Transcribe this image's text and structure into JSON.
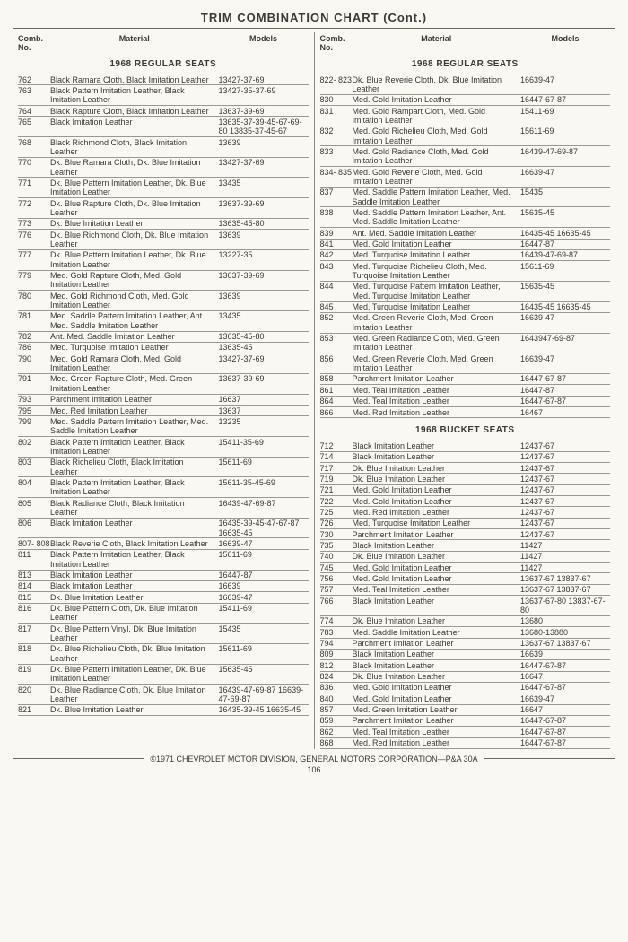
{
  "title": "TRIM COMBINATION CHART (Cont.)",
  "headers": {
    "comb": "Comb.\nNo.",
    "material": "Material",
    "models": "Models"
  },
  "sectionTitles": {
    "regular": "1968 REGULAR SEATS",
    "bucket": "1968 BUCKET SEATS"
  },
  "footer": "©1971 CHEVROLET MOTOR DIVISION, GENERAL MOTORS CORPORATION—P&A 30A",
  "pageNum": "106",
  "left": {
    "regular": [
      {
        "n": "762",
        "m": "Black Ramara Cloth, Black Imitation Leather",
        "md": "13427-37-69"
      },
      {
        "n": "763",
        "m": "Black Pattern Imitation Leather, Black Imitation Leather",
        "md": "13427-35-37-69"
      },
      {
        "n": "764",
        "m": "Black Rapture Cloth, Black Imitation Leather",
        "md": "13637-39-69"
      },
      {
        "n": "765",
        "m": "Black Imitation Leather",
        "md": "13635-37-39-45-67-69-80 13835-37-45-67"
      },
      {
        "n": "768",
        "m": "Black Richmond Cloth, Black Imitation Leather",
        "md": "13639"
      },
      {
        "n": "770",
        "m": "Dk. Blue Ramara Cloth, Dk. Blue Imitation Leather",
        "md": "13427-37-69"
      },
      {
        "n": "771",
        "m": "Dk. Blue Pattern Imitation Leather, Dk. Blue Imitation Leather",
        "md": "13435"
      },
      {
        "n": "772",
        "m": "Dk. Blue Rapture Cloth, Dk. Blue Imitation Leather",
        "md": "13637-39-69"
      },
      {
        "n": "773",
        "m": "Dk. Blue Imitation Leather",
        "md": "13635-45-80"
      },
      {
        "n": "776",
        "m": "Dk. Blue Richmond Cloth, Dk. Blue Imitation Leather",
        "md": "13639"
      },
      {
        "n": "777",
        "m": "Dk. Blue Pattern Imitation Leather, Dk. Blue Imitation Leather",
        "md": "13227-35"
      },
      {
        "n": "779",
        "m": "Med. Gold Rapture Cloth, Med. Gold Imitation Leather",
        "md": "13637-39-69"
      },
      {
        "n": "780",
        "m": "Med. Gold Richmond Cloth, Med. Gold Imitation Leather",
        "md": "13639"
      },
      {
        "n": "781",
        "m": "Med. Saddle Pattern Imitation Leather, Ant. Med. Saddle Imitation Leather",
        "md": "13435"
      },
      {
        "n": "782",
        "m": "Ant. Med. Saddle Imitation Leather",
        "md": "13635-45-80"
      },
      {
        "n": "786",
        "m": "Med. Turquoise Imitation Leather",
        "md": "13635-45"
      },
      {
        "n": "790",
        "m": "Med. Gold Ramara Cloth, Med. Gold Imitation Leather",
        "md": "13427-37-69"
      },
      {
        "n": "791",
        "m": "Med. Green Rapture Cloth, Med. Green Imitation Leather",
        "md": "13637-39-69"
      },
      {
        "n": "793",
        "m": "Parchment Imitation Leather",
        "md": "16637"
      },
      {
        "n": "795",
        "m": "Med. Red Imitation Leather",
        "md": "13637"
      },
      {
        "n": "799",
        "m": "Med. Saddle Pattern Imitation Leather, Med. Saddle Imitation Leather",
        "md": "13235"
      },
      {
        "n": "802",
        "m": "Black Pattern Imitation Leather, Black Imitation Leather",
        "md": "15411-35-69"
      },
      {
        "n": "803",
        "m": "Black Richelieu Cloth, Black Imitation Leather",
        "md": "15611-69"
      },
      {
        "n": "804",
        "m": "Black Pattern Imitation Leather, Black Imitation Leather",
        "md": "15611-35-45-69"
      },
      {
        "n": "805",
        "m": "Black Radiance Cloth, Black Imitation Leather",
        "md": "16439-47-69-87"
      },
      {
        "n": "806",
        "m": "Black Imitation Leather",
        "md": "16435-39-45-47-67-87 16635-45"
      },
      {
        "n": "807- 808",
        "m": "Black Reverie Cloth, Black Imitation Leather",
        "md": "16639-47"
      },
      {
        "n": "811",
        "m": "Black Pattern Imitation Leather, Black Imitation Leather",
        "md": "15611-69"
      },
      {
        "n": "813",
        "m": "Black Imitation Leather",
        "md": "16447-87"
      },
      {
        "n": "814",
        "m": "Black Imitation Leather",
        "md": "16639"
      },
      {
        "n": "815",
        "m": "Dk. Blue Imitation Leather",
        "md": "16639-47"
      },
      {
        "n": "816",
        "m": "Dk. Blue Pattern Cloth, Dk. Blue Imitation Leather",
        "md": "15411-69"
      },
      {
        "n": "817",
        "m": "Dk. Blue Pattern Vinyl, Dk. Blue Imitation Leather",
        "md": "15435"
      },
      {
        "n": "818",
        "m": "Dk. Blue Richelieu Cloth, Dk. Blue Imitation Leather",
        "md": "15611-69"
      },
      {
        "n": "819",
        "m": "Dk. Blue Pattern Imitation Leather, Dk. Blue Imitation Leather",
        "md": "15635-45"
      },
      {
        "n": "820",
        "m": "Dk. Blue Radiance Cloth, Dk. Blue Imitation Leather",
        "md": "16439-47-69-87 16639-47-69-87"
      },
      {
        "n": "821",
        "m": "Dk. Blue Imitation Leather",
        "md": "16435-39-45 16635-45"
      }
    ]
  },
  "right": {
    "regular": [
      {
        "n": "822- 823",
        "m": "Dk. Blue Reverie Cloth, Dk. Blue Imitation Leather",
        "md": "16639-47"
      },
      {
        "n": "830",
        "m": "Med. Gold Imitation Leather",
        "md": "16447-67-87"
      },
      {
        "n": "831",
        "m": "Med. Gold Rampart Cloth, Med. Gold Imitation Leather",
        "md": "15411-69"
      },
      {
        "n": "832",
        "m": "Med. Gold Richelieu Cloth, Med. Gold Imitation Leather",
        "md": "15611-69"
      },
      {
        "n": "833",
        "m": "Med. Gold Radiance Cloth, Med. Gold Imitation Leather",
        "md": "16439-47-69-87"
      },
      {
        "n": "834- 835",
        "m": "Med. Gold Reverie Cloth, Med. Gold Imitation Leather",
        "md": "16639-47"
      },
      {
        "n": "837",
        "m": "Med. Saddle Pattern Imitation Leather, Med. Saddle Imitation Leather",
        "md": "15435"
      },
      {
        "n": "838",
        "m": "Med. Saddle Pattern Imitation Leather, Ant. Med. Saddle Imitation Leather",
        "md": "15635-45"
      },
      {
        "n": "839",
        "m": "Ant. Med. Saddle Imitation Leather",
        "md": "16435-45 16635-45"
      },
      {
        "n": "841",
        "m": "Med. Gold Imitation Leather",
        "md": "16447-87"
      },
      {
        "n": "842",
        "m": "Med. Turquoise Imitation Leather",
        "md": "16439-47-69-87"
      },
      {
        "n": "843",
        "m": "Med. Turquoise Richelieu Cloth, Med. Turquoise Imitation Leather",
        "md": "15611-69"
      },
      {
        "n": "844",
        "m": "Med. Turquoise Pattern Imitation Leather, Med. Turquoise Imitation Leather",
        "md": "15635-45"
      },
      {
        "n": "845",
        "m": "Med. Turquoise Imitation Leather",
        "md": "16435-45 16635-45"
      },
      {
        "n": "852",
        "m": "Med. Green Reverie Cloth, Med. Green Imitation Leather",
        "md": "16639-47"
      },
      {
        "n": "853",
        "m": "Med. Green Radiance Cloth, Med. Green Imitation Leather",
        "md": "1643947-69-87"
      },
      {
        "n": "856",
        "m": "Med. Green Reverie Cloth, Med. Green Imitation Leather",
        "md": "16639-47"
      },
      {
        "n": "858",
        "m": "Parchment Imitation Leather",
        "md": "16447-67-87"
      },
      {
        "n": "861",
        "m": "Med. Teal Imitation Leather",
        "md": "16447-87"
      },
      {
        "n": "864",
        "m": "Med. Teal Imitation Leather",
        "md": "16447-67-87"
      },
      {
        "n": "866",
        "m": "Med. Red Imitation Leather",
        "md": "16467"
      }
    ],
    "bucket": [
      {
        "n": "712",
        "m": "Black Imitation Leather",
        "md": "12437-67"
      },
      {
        "n": "714",
        "m": "Black Imitation Leather",
        "md": "12437-67"
      },
      {
        "n": "717",
        "m": "Dk. Blue Imitation Leather",
        "md": "12437-67"
      },
      {
        "n": "719",
        "m": "Dk. Blue Imitation Leather",
        "md": "12437-67"
      },
      {
        "n": "721",
        "m": "Med. Gold Imitation Leather",
        "md": "12437-67"
      },
      {
        "n": "722",
        "m": "Med. Gold Imitation Leather",
        "md": "12437-67"
      },
      {
        "n": "725",
        "m": "Med. Red Imitation Leather",
        "md": "12437-67"
      },
      {
        "n": "726",
        "m": "Med. Turquoise Imitation Leather",
        "md": "12437-67"
      },
      {
        "n": "730",
        "m": "Parchment Imitation Leather",
        "md": "12437-67"
      },
      {
        "n": "735",
        "m": "Black Imitation Leather",
        "md": "11427"
      },
      {
        "n": "740",
        "m": "Dk. Blue Imitation Leather",
        "md": "11427"
      },
      {
        "n": "745",
        "m": "Med. Gold Imitation Leather",
        "md": "11427"
      },
      {
        "n": "756",
        "m": "Med. Gold Imitation Leather",
        "md": "13637-67 13837-67"
      },
      {
        "n": "757",
        "m": "Med. Teal Imitation Leather",
        "md": "13637-67 13837-67"
      },
      {
        "n": "766",
        "m": "Black Imitation Leather",
        "md": "13637-67-80 13837-67-80"
      },
      {
        "n": "774",
        "m": "Dk. Blue Imitation Leather",
        "md": "13680"
      },
      {
        "n": "783",
        "m": "Med. Saddle Imitation Leather",
        "md": "13680-13880"
      },
      {
        "n": "794",
        "m": "Parchment Imitation Leather",
        "md": "13637-67 13837-67"
      },
      {
        "n": "809",
        "m": "Black Imitation Leather",
        "md": "16639"
      },
      {
        "n": "812",
        "m": "Black Imitation Leather",
        "md": "16447-67-87"
      },
      {
        "n": "824",
        "m": "Dk. Blue Imitation Leather",
        "md": "16647"
      },
      {
        "n": "836",
        "m": "Med. Gold Imitation Leather",
        "md": "16447-67-87"
      },
      {
        "n": "840",
        "m": "Med. Gold Imitation Leather",
        "md": "16639-47"
      },
      {
        "n": "857",
        "m": "Med. Green Imitation Leather",
        "md": "16647"
      },
      {
        "n": "859",
        "m": "Parchment Imitation Leather",
        "md": "16447-67-87"
      },
      {
        "n": "862",
        "m": "Med. Teal Imitation Leather",
        "md": "16447-67-87"
      },
      {
        "n": "868",
        "m": "Med. Red Imitation Leather",
        "md": "16447-67-87"
      }
    ]
  }
}
